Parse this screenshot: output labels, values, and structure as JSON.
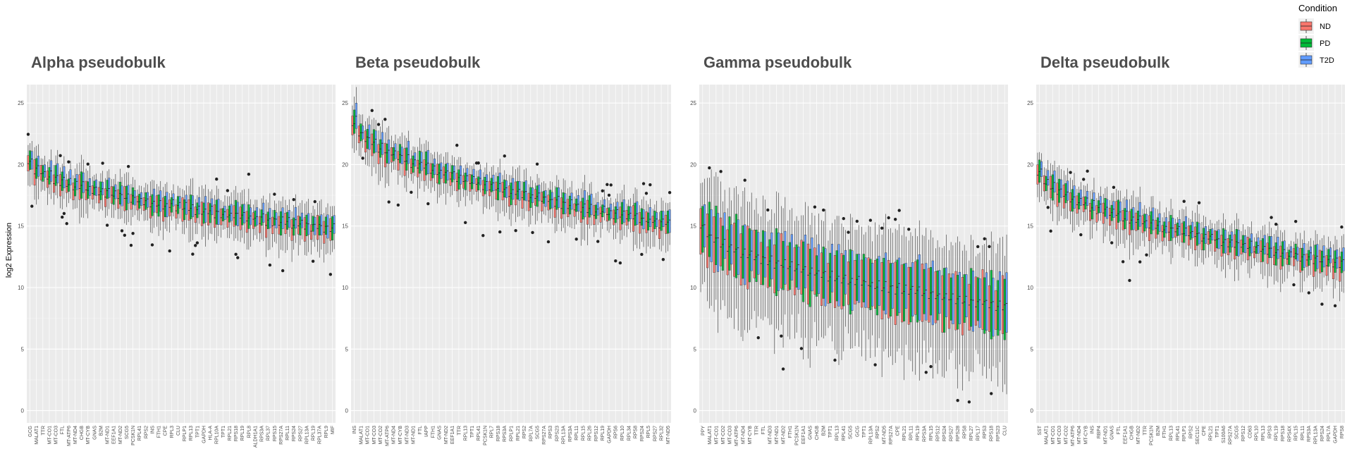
{
  "chart_data": {
    "type": "box",
    "ylabel": "log2 Expression",
    "ylim": [
      -1,
      26.5
    ],
    "yticks": [
      0,
      5,
      10,
      15,
      20,
      25
    ],
    "grid": true,
    "legend": {
      "title": "Condition",
      "position": "top-right",
      "entries": [
        {
          "name": "ND",
          "color": "#F8766D"
        },
        {
          "name": "PD",
          "color": "#00BA38"
        },
        {
          "name": "T2D",
          "color": "#619CFF"
        }
      ]
    },
    "panels": [
      {
        "title": "Alpha pseudobulk",
        "genes": [
          "GCG",
          "MALAT1",
          "TTR",
          "MT-CO1",
          "MT-CO3",
          "FTL",
          "MT-ATP6",
          "MT-ND4",
          "CHGB",
          "MT-CYB",
          "GNAS",
          "B2M",
          "MT-ND1",
          "EEF1A1",
          "MT-ND2",
          "SCG5",
          "PCSK1N",
          "RPL41",
          "RPS2",
          "INS",
          "FTH1",
          "CPE",
          "RPL3",
          "CLU",
          "RPLP1",
          "RPL13",
          "TPT1",
          "GAPDH",
          "HLA-A",
          "RPL10A",
          "TPT1",
          "RPL21",
          "RPS18",
          "RPL19",
          "RPL8",
          "ALDH1A1",
          "RPS3A",
          "RPL37",
          "RPS15",
          "RPS27A",
          "RPL11",
          "RPS24",
          "RPS27",
          "RPL13A",
          "RPL19",
          "RPL37A",
          "RPL9",
          "MIF"
        ],
        "median_range": [
          20.3,
          14.8
        ]
      },
      {
        "title": "Beta pseudobulk",
        "genes": [
          "INS",
          "MALAT1",
          "MT-CO1",
          "MT-CO3",
          "MT-CO2",
          "MT-ATP6",
          "MT-ND4",
          "MT-CYB",
          "MT-ND3",
          "MT-ND1",
          "FTL",
          "IAPP",
          "FTH1",
          "GNAS",
          "MT-ND2",
          "EEF1A1",
          "TTR",
          "RPL13",
          "TPT1",
          "RPL41",
          "PCSK1N",
          "RPL7",
          "RPS18",
          "RPS3A",
          "RPLP1",
          "RPL21",
          "RPS2",
          "RPL7A",
          "SCG5",
          "RPS27A",
          "RPS3",
          "RPS23",
          "RPL13A",
          "RPS3A",
          "RPL11",
          "RPL15",
          "RPL26",
          "RPS12",
          "RPL19",
          "GAPDH",
          "RPS6",
          "RPL10",
          "RPL34",
          "RPS8",
          "RPS24",
          "RPL5",
          "RPS27",
          "RPL32",
          "MT-ND5"
        ],
        "median_range": [
          23.5,
          15.2
        ]
      },
      {
        "title": "Gamma pseudobulk",
        "genes": [
          "PPY",
          "MALAT1",
          "MT-CO1",
          "MT-CO2",
          "MT-CO3",
          "MT-ATP6",
          "MT-ND4",
          "MT-CYB",
          "TTR",
          "FTL",
          "MT-ND3",
          "MT-ND1",
          "MT-ND2",
          "FTH1",
          "PCSK1N",
          "EEF1A1",
          "GNAS",
          "CHGB",
          "B2M",
          "TPT1",
          "RPL13",
          "RPL41",
          "SCG5",
          "GCG",
          "TPT1",
          "RPL13A",
          "RPS2",
          "MT-ND5",
          "RPS27A",
          "CPE",
          "RPL21",
          "RPL11",
          "RPL19",
          "RPS3A",
          "RPL15",
          "RPS12",
          "RPS24",
          "RPS27",
          "RPS28",
          "RPS8",
          "RPL27",
          "RPL17",
          "RPS3",
          "RPS18",
          "RPS23",
          "CLU"
        ],
        "median_range": [
          15.0,
          8.5
        ]
      },
      {
        "title": "Delta pseudobulk",
        "genes": [
          "SST",
          "MALAT1",
          "MT-CO1",
          "MT-CO3",
          "MT-CO2",
          "MT-ATP6",
          "MT-ND4",
          "MT-CYB",
          "INS",
          "RBP4",
          "MT-ND1",
          "GNAS",
          "FTL",
          "EEF1A1",
          "CHGB",
          "MT-ND2",
          "TTR",
          "PCSK1N",
          "B2M",
          "FTH1",
          "RPL13",
          "RPL41",
          "RPLP1",
          "RPS2",
          "SEC11C",
          "CPE",
          "RPL21",
          "TPT1",
          "S100A6",
          "RPS27A",
          "SCG5",
          "RPS12",
          "CD63",
          "RPL10",
          "RPL13",
          "RPS3",
          "RPL19",
          "RPS18",
          "RPS4X",
          "RPL15",
          "RPL11",
          "RPS3A",
          "RPL13A",
          "RPS24",
          "RPL7A",
          "GAPDH",
          "RPS8"
        ],
        "median_range": [
          19.5,
          12.0
        ]
      }
    ]
  }
}
